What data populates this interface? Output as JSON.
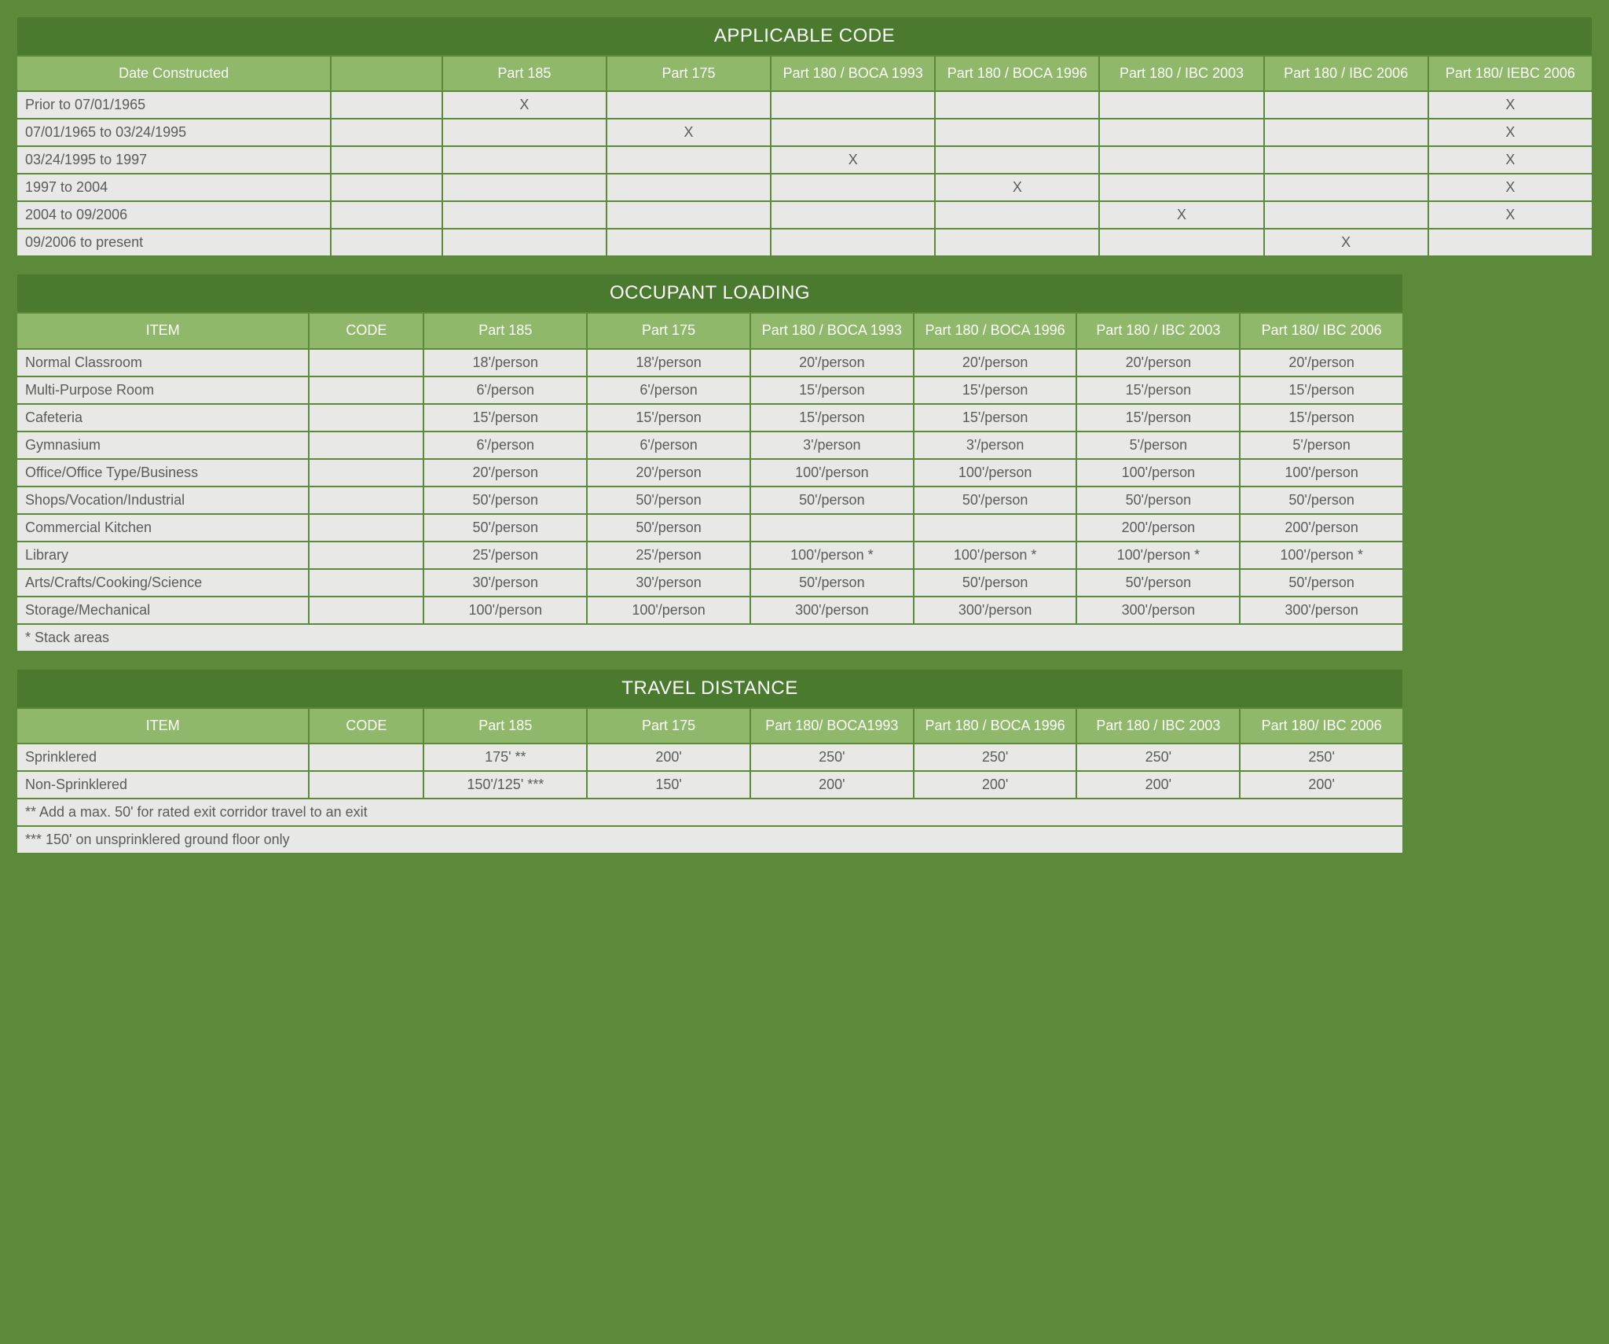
{
  "colors": {
    "page_bg": "#5a8a3a",
    "title_bg": "#4a7a2e",
    "header_bg": "#8fb86a",
    "cell_bg": "#e8e9e7",
    "header_text": "#ffffff",
    "cell_text": "#5a5c58"
  },
  "table1": {
    "title": "APPLICABLE CODE",
    "headers": [
      "Date Constructed",
      "",
      "Part 185",
      "Part 175",
      "Part 180 / BOCA 1993",
      "Part 180 / BOCA 1996",
      "Part 180 / IBC 2003",
      "Part 180 / IBC 2006",
      "Part 180/ IEBC 2006"
    ],
    "rows": [
      [
        "Prior to 07/01/1965",
        "",
        "X",
        "",
        "",
        "",
        "",
        "",
        "X"
      ],
      [
        "07/01/1965 to 03/24/1995",
        "",
        "",
        "X",
        "",
        "",
        "",
        "",
        "X"
      ],
      [
        "03/24/1995 to 1997",
        "",
        "",
        "",
        "X",
        "",
        "",
        "",
        "X"
      ],
      [
        "1997 to 2004",
        "",
        "",
        "",
        "",
        "X",
        "",
        "",
        "X"
      ],
      [
        "2004 to 09/2006",
        "",
        "",
        "",
        "",
        "",
        "X",
        "",
        "X"
      ],
      [
        "09/2006 to present",
        "",
        "",
        "",
        "",
        "",
        "",
        "X",
        ""
      ]
    ]
  },
  "table2": {
    "title": "OCCUPANT LOADING",
    "headers": [
      "ITEM",
      "CODE",
      "Part 185",
      "Part 175",
      "Part 180 / BOCA 1993",
      "Part 180 / BOCA 1996",
      "Part 180 / IBC 2003",
      "Part 180/ IBC 2006"
    ],
    "rows": [
      [
        "Normal Classroom",
        "",
        "18'/person",
        "18'/person",
        "20'/person",
        "20'/person",
        "20'/person",
        "20'/person"
      ],
      [
        "Multi-Purpose Room",
        "",
        "6'/person",
        "6'/person",
        "15'/person",
        "15'/person",
        "15'/person",
        "15'/person"
      ],
      [
        "Cafeteria",
        "",
        "15'/person",
        "15'/person",
        "15'/person",
        "15'/person",
        "15'/person",
        "15'/person"
      ],
      [
        "Gymnasium",
        "",
        "6'/person",
        "6'/person",
        "3'/person",
        "3'/person",
        "5'/person",
        "5'/person"
      ],
      [
        "Office/Office Type/Business",
        "",
        "20'/person",
        "20'/person",
        "100'/person",
        "100'/person",
        "100'/person",
        "100'/person"
      ],
      [
        "Shops/Vocation/Industrial",
        "",
        "50'/person",
        "50'/person",
        "50'/person",
        "50'/person",
        "50'/person",
        "50'/person"
      ],
      [
        "Commercial Kitchen",
        "",
        "50'/person",
        "50'/person",
        "",
        "",
        "200'/person",
        "200'/person"
      ],
      [
        "Library",
        "",
        "25'/person",
        "25'/person",
        "100'/person  *",
        "100'/person  *",
        "100'/person  *",
        "100'/person  *"
      ],
      [
        "Arts/Crafts/Cooking/Science",
        "",
        "30'/person",
        "30'/person",
        "50'/person",
        "50'/person",
        "50'/person",
        "50'/person"
      ],
      [
        "Storage/Mechanical",
        "",
        "100'/person",
        "100'/person",
        "300'/person",
        "300'/person",
        "300'/person",
        "300'/person"
      ]
    ],
    "notes": [
      "*  Stack areas"
    ]
  },
  "table3": {
    "title": "TRAVEL DISTANCE",
    "headers": [
      "ITEM",
      "CODE",
      "Part 185",
      "Part 175",
      "Part 180/ BOCA1993",
      "Part 180 / BOCA 1996",
      "Part 180 / IBC 2003",
      "Part 180/ IBC 2006"
    ],
    "rows": [
      [
        "Sprinklered",
        "",
        "175'  **",
        "200'",
        "250'",
        "250'",
        "250'",
        "250'"
      ],
      [
        "Non-Sprinklered",
        "",
        "150'/125'  ***",
        "150'",
        "200'",
        "200'",
        "200'",
        "200'"
      ]
    ],
    "notes": [
      "** Add a max. 50' for rated exit corridor travel to an exit",
      "*** 150' on unsprinklered ground floor only"
    ]
  }
}
